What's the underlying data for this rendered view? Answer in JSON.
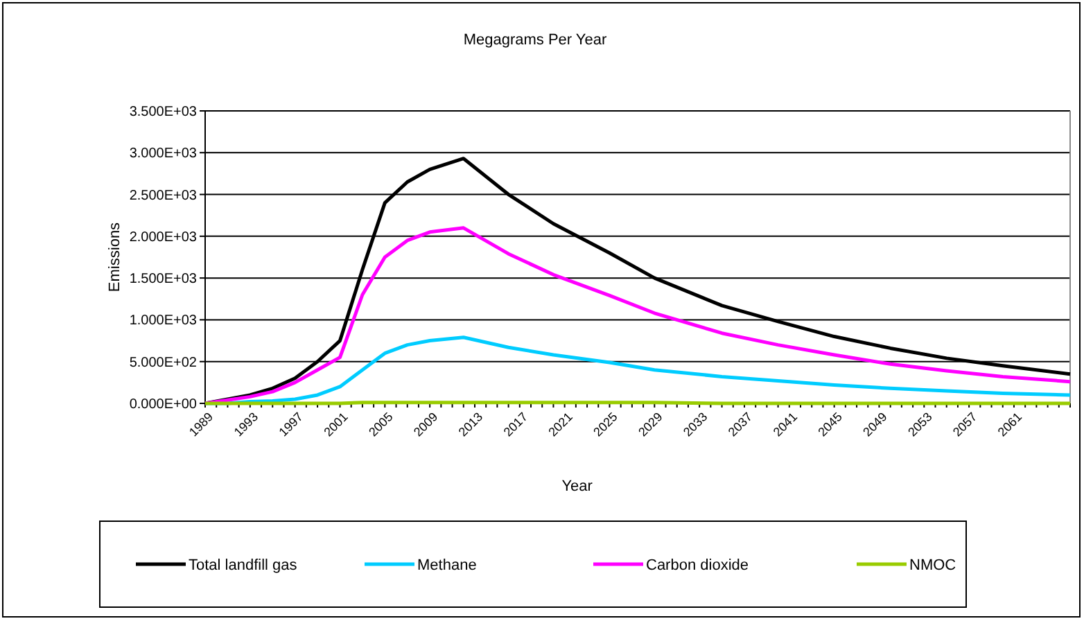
{
  "chart_data": {
    "type": "line",
    "title": "Megagrams Per Year",
    "xlabel": "Year",
    "ylabel": "Emissions",
    "x": [
      1989,
      1991,
      1993,
      1995,
      1997,
      1999,
      2001,
      2003,
      2005,
      2007,
      2009,
      2012,
      2016,
      2020,
      2025,
      2029,
      2035,
      2040,
      2045,
      2050,
      2055,
      2060,
      2066
    ],
    "xlim": [
      1989,
      2066
    ],
    "xticks": [
      1989,
      1993,
      1997,
      2001,
      2005,
      2009,
      2013,
      2017,
      2021,
      2025,
      2029,
      2033,
      2037,
      2041,
      2045,
      2049,
      2053,
      2057,
      2061
    ],
    "ylim": [
      0,
      3500
    ],
    "yticks": [
      {
        "value": 0,
        "label": "0.000E+00"
      },
      {
        "value": 500,
        "label": "5.000E+02"
      },
      {
        "value": 1000,
        "label": "1.000E+03"
      },
      {
        "value": 1500,
        "label": "1.500E+03"
      },
      {
        "value": 2000,
        "label": "2.000E+03"
      },
      {
        "value": 2500,
        "label": "2.500E+03"
      },
      {
        "value": 3000,
        "label": "3.000E+03"
      },
      {
        "value": 3500,
        "label": "3.500E+03"
      }
    ],
    "grid": "y",
    "legend": "bottom",
    "series": [
      {
        "name": "Total landfill gas",
        "color": "#000000",
        "values": [
          0,
          50,
          100,
          180,
          300,
          500,
          750,
          1600,
          2400,
          2650,
          2800,
          2930,
          2500,
          2150,
          1800,
          1500,
          1170,
          980,
          800,
          660,
          540,
          450,
          350
        ]
      },
      {
        "name": "Methane",
        "color": "#00ccff",
        "values": [
          0,
          0,
          20,
          30,
          50,
          100,
          200,
          400,
          600,
          700,
          750,
          790,
          670,
          580,
          490,
          400,
          320,
          270,
          220,
          180,
          150,
          120,
          100
        ]
      },
      {
        "name": "Carbon dioxide",
        "color": "#ff00ff",
        "values": [
          0,
          40,
          80,
          140,
          250,
          400,
          550,
          1300,
          1750,
          1950,
          2050,
          2100,
          1790,
          1540,
          1290,
          1080,
          840,
          700,
          580,
          470,
          390,
          320,
          260
        ]
      },
      {
        "name": "NMOC",
        "color": "#99cc00",
        "values": [
          0,
          0,
          0,
          0,
          0,
          0,
          0,
          10,
          10,
          10,
          10,
          10,
          10,
          10,
          10,
          10,
          0,
          0,
          0,
          0,
          0,
          0,
          0
        ]
      }
    ]
  }
}
